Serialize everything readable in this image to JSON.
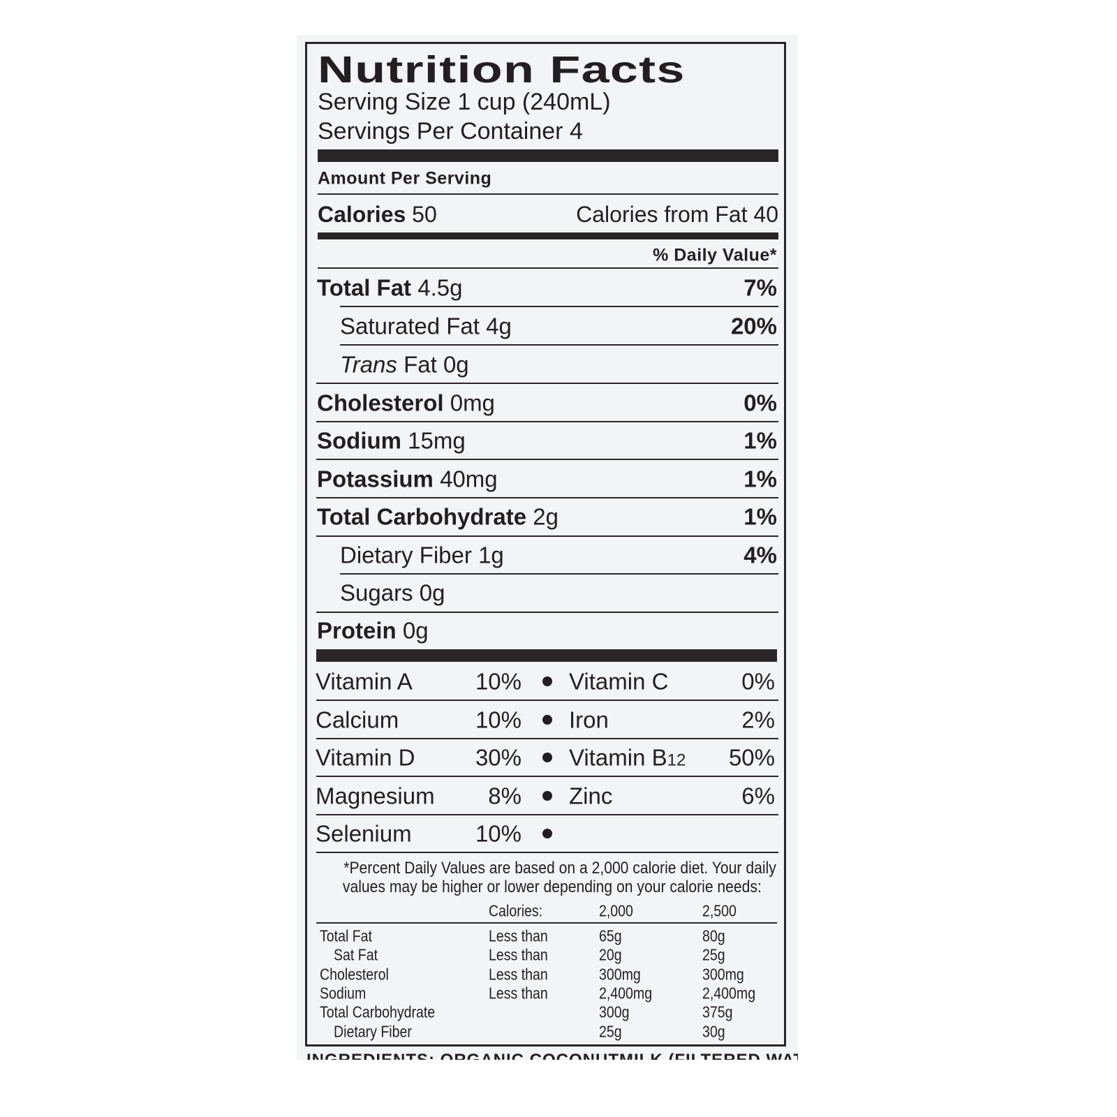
{
  "title": "Nutrition Facts",
  "serving_size": "Serving Size 1 cup (240mL)",
  "servings_per_container": "Servings Per Container 4",
  "amount_per_serving": "Amount Per Serving",
  "calories": {
    "label": "Calories",
    "value": "50",
    "from_fat": "Calories from Fat 40"
  },
  "daily_value_header": "% Daily Value*",
  "nutrients": [
    {
      "label": "Total Fat",
      "amount": "4.5g",
      "dv": "7%",
      "bold": true,
      "indent": false,
      "italic": false
    },
    {
      "label": "Saturated Fat",
      "amount": "4g",
      "dv": "20%",
      "bold": false,
      "indent": true,
      "italic": false
    },
    {
      "label": "Trans",
      "label_suffix": "Fat",
      "amount": "0g",
      "dv": "",
      "bold": false,
      "indent": true,
      "italic": true
    },
    {
      "label": "Cholesterol",
      "amount": "0mg",
      "dv": "0%",
      "bold": true,
      "indent": false,
      "italic": false
    },
    {
      "label": "Sodium",
      "amount": "15mg",
      "dv": "1%",
      "bold": true,
      "indent": false,
      "italic": false
    },
    {
      "label": "Potassium",
      "amount": "40mg",
      "dv": "1%",
      "bold": true,
      "indent": false,
      "italic": false
    },
    {
      "label": "Total Carbohydrate",
      "amount": "2g",
      "dv": "1%",
      "bold": true,
      "indent": false,
      "italic": false
    },
    {
      "label": "Dietary Fiber",
      "amount": "1g",
      "dv": "4%",
      "bold": false,
      "indent": true,
      "italic": false
    },
    {
      "label": "Sugars",
      "amount": "0g",
      "dv": "",
      "bold": false,
      "indent": true,
      "italic": false
    },
    {
      "label": "Protein",
      "amount": "0g",
      "dv": "",
      "bold": true,
      "indent": false,
      "italic": false
    }
  ],
  "vitamins": [
    {
      "left": "Vitamin A",
      "left_dv": "10%",
      "right": "Vitamin C",
      "right_sub": "",
      "right_dv": "0%"
    },
    {
      "left": "Calcium",
      "left_dv": "10%",
      "right": "Iron",
      "right_sub": "",
      "right_dv": "2%"
    },
    {
      "left": "Vitamin D",
      "left_dv": "30%",
      "right": "Vitamin B",
      "right_sub": "12",
      "right_dv": "50%"
    },
    {
      "left": "Magnesium",
      "left_dv": "8%",
      "right": "Zinc",
      "right_sub": "",
      "right_dv": "6%"
    },
    {
      "left": "Selenium",
      "left_dv": "10%",
      "right": "",
      "right_sub": "",
      "right_dv": ""
    }
  ],
  "footnote": [
    "*Percent Daily Values are based on a 2,000 calorie diet. Your daily",
    "values may be higher or lower depending on your calorie needs:"
  ],
  "dv_table": {
    "header": [
      "",
      "Calories:",
      "2,000",
      "2,500"
    ],
    "rows": [
      [
        "Total Fat",
        "Less than",
        "65g",
        "80g"
      ],
      [
        "  Sat Fat",
        "Less than",
        "20g",
        "25g"
      ],
      [
        "Cholesterol",
        "Less than",
        "300mg",
        "300mg"
      ],
      [
        "Sodium",
        "Less than",
        "2,400mg",
        "2,400mg"
      ],
      [
        "Total Carbohydrate",
        "",
        "300g",
        "375g"
      ],
      [
        "  Dietary Fiber",
        "",
        "25g",
        "30g"
      ]
    ]
  },
  "ingredients": "INGREDIENTS: ORGANIC COCONUTMILK (FILTERED WATER, ORGANIC"
}
